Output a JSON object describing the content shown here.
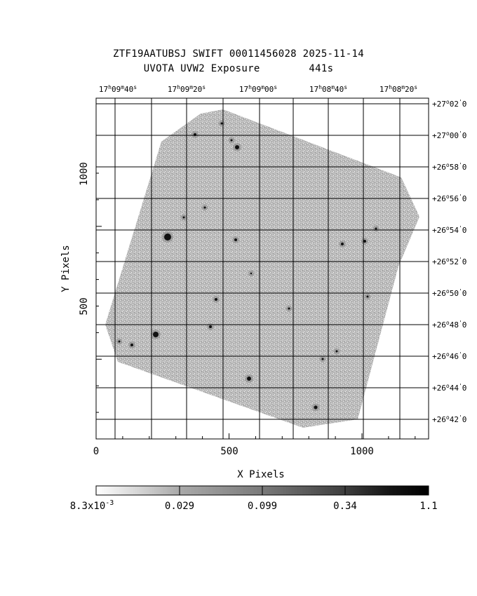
{
  "title": {
    "line1": "ZTF19AATUBSJ SWIFT 00011456028 2025-11-14",
    "line2": "UVOTA UVW2 Exposure        441s"
  },
  "axes": {
    "xlabel": "X Pixels",
    "ylabel": "Y Pixels",
    "x_ticks": [
      "0",
      "500",
      "1000"
    ],
    "y_ticks": [
      "500",
      "1000"
    ],
    "ra_ticks": [
      {
        "h": "17",
        "m": "09",
        "s": "40"
      },
      {
        "h": "17",
        "m": "09",
        "s": "20"
      },
      {
        "h": "17",
        "m": "09",
        "s": "00"
      },
      {
        "h": "17",
        "m": "08",
        "s": "40"
      },
      {
        "h": "17",
        "m": "08",
        "s": "20"
      }
    ],
    "dec_ticks": [
      {
        "d": "+27",
        "m": "02"
      },
      {
        "d": "+27",
        "m": "00"
      },
      {
        "d": "+26",
        "m": "58"
      },
      {
        "d": "+26",
        "m": "56"
      },
      {
        "d": "+26",
        "m": "54"
      },
      {
        "d": "+26",
        "m": "52"
      },
      {
        "d": "+26",
        "m": "50"
      },
      {
        "d": "+26",
        "m": "48"
      },
      {
        "d": "+26",
        "m": "46"
      },
      {
        "d": "+26",
        "m": "44"
      },
      {
        "d": "+26",
        "m": "42"
      }
    ]
  },
  "colorbar": {
    "labels": [
      "8.3x10",
      "0.029",
      "0.099",
      "0.34",
      "1.1"
    ],
    "exponent": "-3"
  },
  "colors": {
    "background": "#ffffff",
    "exposure_gray": "#a8a8a8",
    "grid": "#000000"
  }
}
